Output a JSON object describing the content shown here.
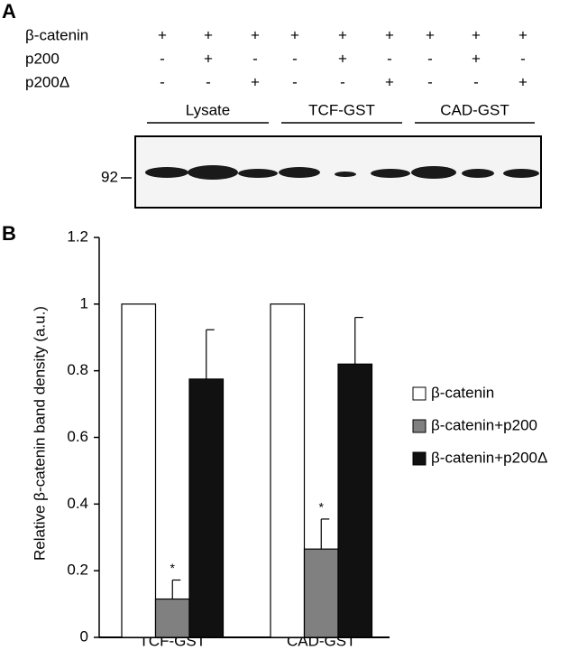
{
  "panel_a": {
    "label": "A",
    "rows": [
      {
        "name": "β-catenin",
        "signs": [
          "+",
          "+",
          "+",
          "+",
          "+",
          "+",
          "+",
          "+",
          "+"
        ]
      },
      {
        "name": "p200",
        "signs": [
          "-",
          "+",
          "-",
          "-",
          "+",
          "-",
          "-",
          "+",
          "-"
        ]
      },
      {
        "name": "p200Δ",
        "signs": [
          "-",
          "-",
          "+",
          "-",
          "-",
          "+",
          "-",
          "-",
          "+"
        ]
      }
    ],
    "groups": [
      "Lysate",
      "TCF-GST",
      "CAD-GST"
    ],
    "marker": "92"
  },
  "chart_data": {
    "type": "bar",
    "panel_label": "B",
    "ylabel": "Relative β-catenin band density  (a.u.)",
    "categories": [
      "TCF-GST",
      "CAD-GST"
    ],
    "series": [
      {
        "name": "β-catenin",
        "color": "#ffffff",
        "values": [
          1,
          1
        ]
      },
      {
        "name": "β-catenin+p200",
        "color": "#808080",
        "values": [
          0.115,
          0.265
        ],
        "errors": [
          0.057,
          0.09
        ],
        "markers": [
          "*",
          "*"
        ]
      },
      {
        "name": "β-catenin+p200Δ",
        "color": "#111111",
        "values": [
          0.775,
          0.82
        ],
        "errors": [
          0.148,
          0.14
        ]
      }
    ],
    "ylim": [
      0,
      1.2
    ],
    "yticks": [
      0,
      0.2,
      0.4,
      0.6,
      0.8,
      1,
      1.2
    ]
  }
}
